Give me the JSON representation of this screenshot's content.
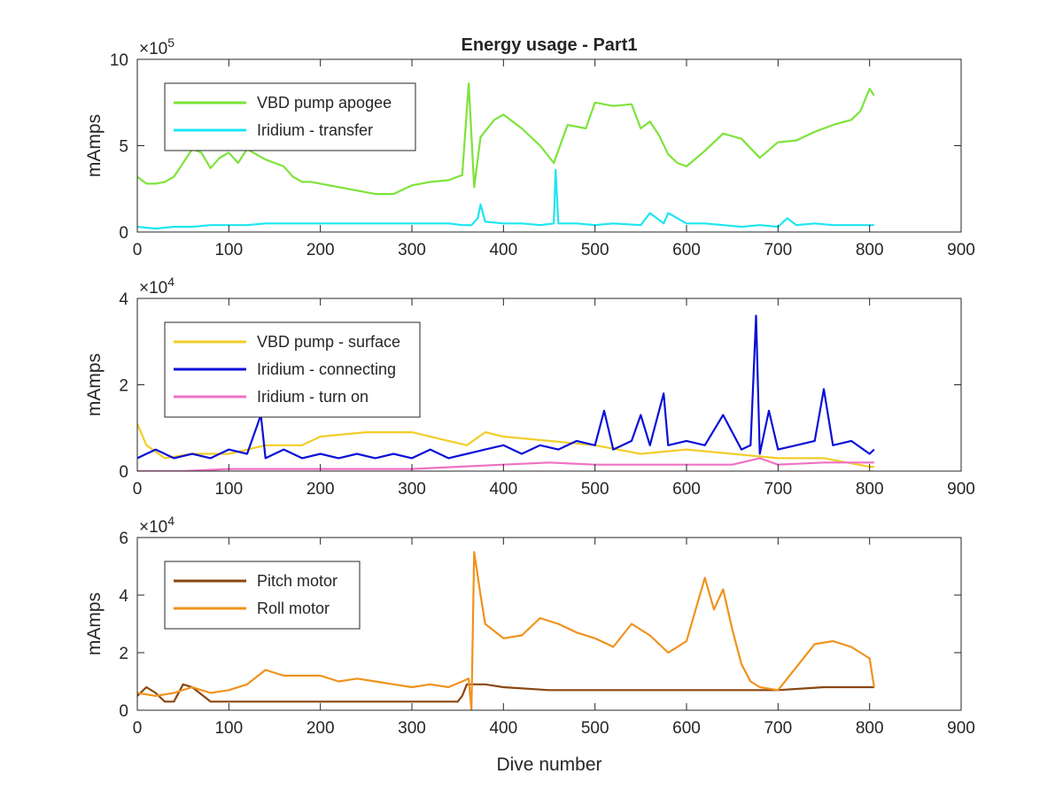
{
  "figure": {
    "title": "Energy usage - Part1",
    "xlabel": "Dive number"
  },
  "chart_data": [
    {
      "type": "line",
      "title": "Energy usage - Part1",
      "xlabel": "",
      "ylabel": "mAmps",
      "exponent_base": "×10",
      "exponent_power": "5",
      "xlim": [
        0,
        900
      ],
      "xticks": [
        0,
        100,
        200,
        300,
        400,
        500,
        600,
        700,
        800,
        900
      ],
      "ylim": [
        0,
        10
      ],
      "yticks": [
        0,
        5,
        10
      ],
      "grid": false,
      "legend_position": "top-left",
      "series": [
        {
          "name": "VBD pump apogee",
          "color": "#7de33a",
          "x": [
            0,
            10,
            20,
            30,
            40,
            50,
            60,
            70,
            80,
            90,
            100,
            110,
            120,
            130,
            140,
            150,
            160,
            170,
            180,
            190,
            200,
            220,
            240,
            260,
            280,
            300,
            320,
            340,
            355,
            362,
            368,
            375,
            390,
            400,
            420,
            440,
            455,
            470,
            490,
            500,
            520,
            540,
            550,
            560,
            570,
            580,
            590,
            600,
            620,
            640,
            660,
            680,
            700,
            720,
            740,
            760,
            780,
            790,
            800,
            805
          ],
          "y": [
            3.2,
            2.8,
            2.8,
            2.9,
            3.2,
            4.0,
            4.8,
            4.6,
            3.7,
            4.3,
            4.6,
            4.0,
            4.8,
            4.5,
            4.2,
            4.0,
            3.8,
            3.2,
            2.9,
            2.9,
            2.8,
            2.6,
            2.4,
            2.2,
            2.2,
            2.7,
            2.9,
            3.0,
            3.3,
            8.6,
            2.6,
            5.5,
            6.5,
            6.8,
            6.0,
            5.0,
            4.0,
            6.2,
            6.0,
            7.5,
            7.3,
            7.4,
            6.0,
            6.4,
            5.6,
            4.5,
            4.0,
            3.8,
            4.7,
            5.7,
            5.4,
            4.3,
            5.2,
            5.3,
            5.8,
            6.2,
            6.5,
            7.0,
            8.3,
            7.9
          ]
        },
        {
          "name": "Iridium - transfer",
          "color": "#1ee6f0",
          "x": [
            0,
            20,
            40,
            60,
            80,
            100,
            120,
            140,
            160,
            180,
            200,
            220,
            240,
            260,
            280,
            300,
            320,
            340,
            355,
            365,
            372,
            375,
            380,
            400,
            420,
            440,
            455,
            457,
            460,
            480,
            500,
            520,
            550,
            560,
            575,
            580,
            600,
            620,
            640,
            660,
            680,
            700,
            710,
            720,
            740,
            760,
            780,
            800,
            805
          ],
          "y": [
            0.3,
            0.2,
            0.3,
            0.3,
            0.4,
            0.4,
            0.4,
            0.5,
            0.5,
            0.5,
            0.5,
            0.5,
            0.5,
            0.5,
            0.5,
            0.5,
            0.5,
            0.5,
            0.4,
            0.4,
            0.8,
            1.6,
            0.6,
            0.5,
            0.5,
            0.4,
            0.5,
            3.6,
            0.5,
            0.5,
            0.4,
            0.5,
            0.4,
            1.1,
            0.5,
            1.1,
            0.5,
            0.5,
            0.4,
            0.3,
            0.4,
            0.3,
            0.8,
            0.4,
            0.5,
            0.4,
            0.4,
            0.4,
            0.4
          ]
        }
      ]
    },
    {
      "type": "line",
      "xlabel": "",
      "ylabel": "mAmps",
      "exponent_base": "×10",
      "exponent_power": "4",
      "xlim": [
        0,
        900
      ],
      "xticks": [
        0,
        100,
        200,
        300,
        400,
        500,
        600,
        700,
        800,
        900
      ],
      "ylim": [
        0,
        4
      ],
      "yticks": [
        0,
        2,
        4
      ],
      "grid": false,
      "legend_position": "top-left",
      "series": [
        {
          "name": "VBD pump - surface",
          "color": "#f2cd2a",
          "x": [
            0,
            10,
            30,
            60,
            100,
            140,
            180,
            200,
            250,
            300,
            340,
            360,
            380,
            400,
            450,
            500,
            550,
            600,
            650,
            700,
            750,
            800,
            805
          ],
          "y": [
            1.1,
            0.6,
            0.3,
            0.4,
            0.4,
            0.6,
            0.6,
            0.8,
            0.9,
            0.9,
            0.7,
            0.6,
            0.9,
            0.8,
            0.7,
            0.6,
            0.4,
            0.5,
            0.4,
            0.3,
            0.3,
            0.1,
            0.1
          ]
        },
        {
          "name": "Iridium - connecting",
          "color": "#0a10d8",
          "x": [
            0,
            20,
            40,
            60,
            80,
            100,
            120,
            135,
            140,
            160,
            180,
            200,
            220,
            240,
            260,
            280,
            300,
            320,
            340,
            360,
            380,
            400,
            420,
            440,
            460,
            480,
            500,
            510,
            520,
            540,
            550,
            560,
            575,
            580,
            600,
            620,
            640,
            660,
            670,
            676,
            680,
            690,
            700,
            720,
            740,
            750,
            760,
            780,
            800,
            805
          ],
          "y": [
            0.3,
            0.5,
            0.3,
            0.4,
            0.3,
            0.5,
            0.4,
            1.3,
            0.3,
            0.5,
            0.3,
            0.4,
            0.3,
            0.4,
            0.3,
            0.4,
            0.3,
            0.5,
            0.3,
            0.4,
            0.5,
            0.6,
            0.4,
            0.6,
            0.5,
            0.7,
            0.6,
            1.4,
            0.5,
            0.7,
            1.3,
            0.6,
            1.8,
            0.6,
            0.7,
            0.6,
            1.3,
            0.5,
            0.6,
            3.6,
            0.4,
            1.4,
            0.5,
            0.6,
            0.7,
            1.9,
            0.6,
            0.7,
            0.4,
            0.5
          ]
        },
        {
          "name": "Iridium - turn on",
          "color": "#ee72c2",
          "x": [
            0,
            50,
            100,
            150,
            200,
            250,
            300,
            350,
            400,
            450,
            500,
            550,
            600,
            650,
            680,
            700,
            750,
            800,
            805
          ],
          "y": [
            0.0,
            0.0,
            0.05,
            0.05,
            0.05,
            0.05,
            0.05,
            0.1,
            0.15,
            0.2,
            0.15,
            0.15,
            0.15,
            0.15,
            0.3,
            0.15,
            0.2,
            0.2,
            0.2
          ]
        }
      ]
    },
    {
      "type": "line",
      "xlabel": "Dive number",
      "ylabel": "mAmps",
      "exponent_base": "×10",
      "exponent_power": "4",
      "xlim": [
        0,
        900
      ],
      "xticks": [
        0,
        100,
        200,
        300,
        400,
        500,
        600,
        700,
        800,
        900
      ],
      "ylim": [
        0,
        6
      ],
      "yticks": [
        0,
        2,
        4,
        6
      ],
      "grid": false,
      "legend_position": "top-left",
      "series": [
        {
          "name": "Pitch motor",
          "color": "#8a4711",
          "x": [
            0,
            10,
            20,
            30,
            40,
            50,
            60,
            80,
            100,
            150,
            200,
            250,
            300,
            350,
            355,
            360,
            380,
            400,
            450,
            500,
            550,
            600,
            650,
            700,
            750,
            800,
            805
          ],
          "y": [
            0.5,
            0.8,
            0.6,
            0.3,
            0.3,
            0.9,
            0.8,
            0.3,
            0.3,
            0.3,
            0.3,
            0.3,
            0.3,
            0.3,
            0.5,
            0.9,
            0.9,
            0.8,
            0.7,
            0.7,
            0.7,
            0.7,
            0.7,
            0.7,
            0.8,
            0.8,
            0.8
          ]
        },
        {
          "name": "Roll motor",
          "color": "#f0921c",
          "x": [
            0,
            20,
            40,
            60,
            80,
            100,
            120,
            140,
            160,
            180,
            200,
            220,
            240,
            260,
            280,
            300,
            320,
            340,
            355,
            362,
            365,
            368,
            375,
            380,
            400,
            420,
            440,
            460,
            480,
            500,
            520,
            540,
            560,
            580,
            600,
            620,
            630,
            640,
            650,
            660,
            670,
            680,
            700,
            720,
            740,
            760,
            780,
            800,
            805
          ],
          "y": [
            0.6,
            0.5,
            0.6,
            0.8,
            0.6,
            0.7,
            0.9,
            1.4,
            1.2,
            1.2,
            1.2,
            1.0,
            1.1,
            1.0,
            0.9,
            0.8,
            0.9,
            0.8,
            1.0,
            1.1,
            0.0,
            5.5,
            4.0,
            3.0,
            2.5,
            2.6,
            3.2,
            3.0,
            2.7,
            2.5,
            2.2,
            3.0,
            2.6,
            2.0,
            2.4,
            4.6,
            3.5,
            4.2,
            2.8,
            1.6,
            1.0,
            0.8,
            0.7,
            1.5,
            2.3,
            2.4,
            2.2,
            1.8,
            0.8
          ]
        }
      ]
    }
  ]
}
